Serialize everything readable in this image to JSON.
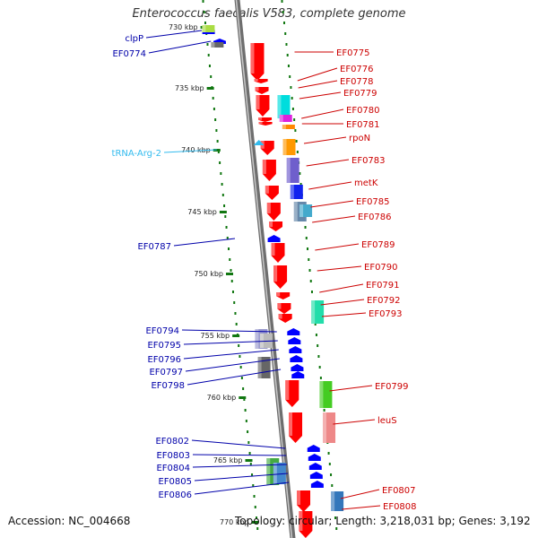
{
  "title": "Enterococcus faecalis V583, complete genome",
  "footer": {
    "accession": "Accession: NC_004668",
    "summary": "Topology: circular; Length: 3,218,031 bp; Genes: 3,192"
  },
  "colors": {
    "backbone": "#8c8c8c",
    "forward_gene": "#ff0000",
    "reverse_gene": "#0000ff",
    "trna": "#33bbee",
    "forward_label": "#cc0000",
    "reverse_label": "#0000aa",
    "gc_dots": "#117711"
  },
  "ticks": [
    "730 kbp",
    "735 kbp",
    "740 kbp",
    "745 kbp",
    "750 kbp",
    "755 kbp",
    "760 kbp",
    "765 kbp",
    "770 kbp"
  ],
  "forward_labels": [
    "EF0775",
    "EF0776",
    "EF0778",
    "EF0779",
    "EF0780",
    "EF0781",
    "rpoN",
    "EF0783",
    "metK",
    "EF0785",
    "EF0786",
    "EF0789",
    "EF0790",
    "EF0791",
    "EF0792",
    "EF0793",
    "EF0799",
    "leuS",
    "EF0807",
    "EF0808"
  ],
  "reverse_labels": [
    "clpP",
    "EF0774",
    "EF0787",
    "EF0794",
    "EF0795",
    "EF0796",
    "EF0797",
    "EF0798",
    "EF0802",
    "EF0803",
    "EF0804",
    "EF0805",
    "EF0806"
  ],
  "trna_labels": [
    "tRNA-Arg-2"
  ]
}
